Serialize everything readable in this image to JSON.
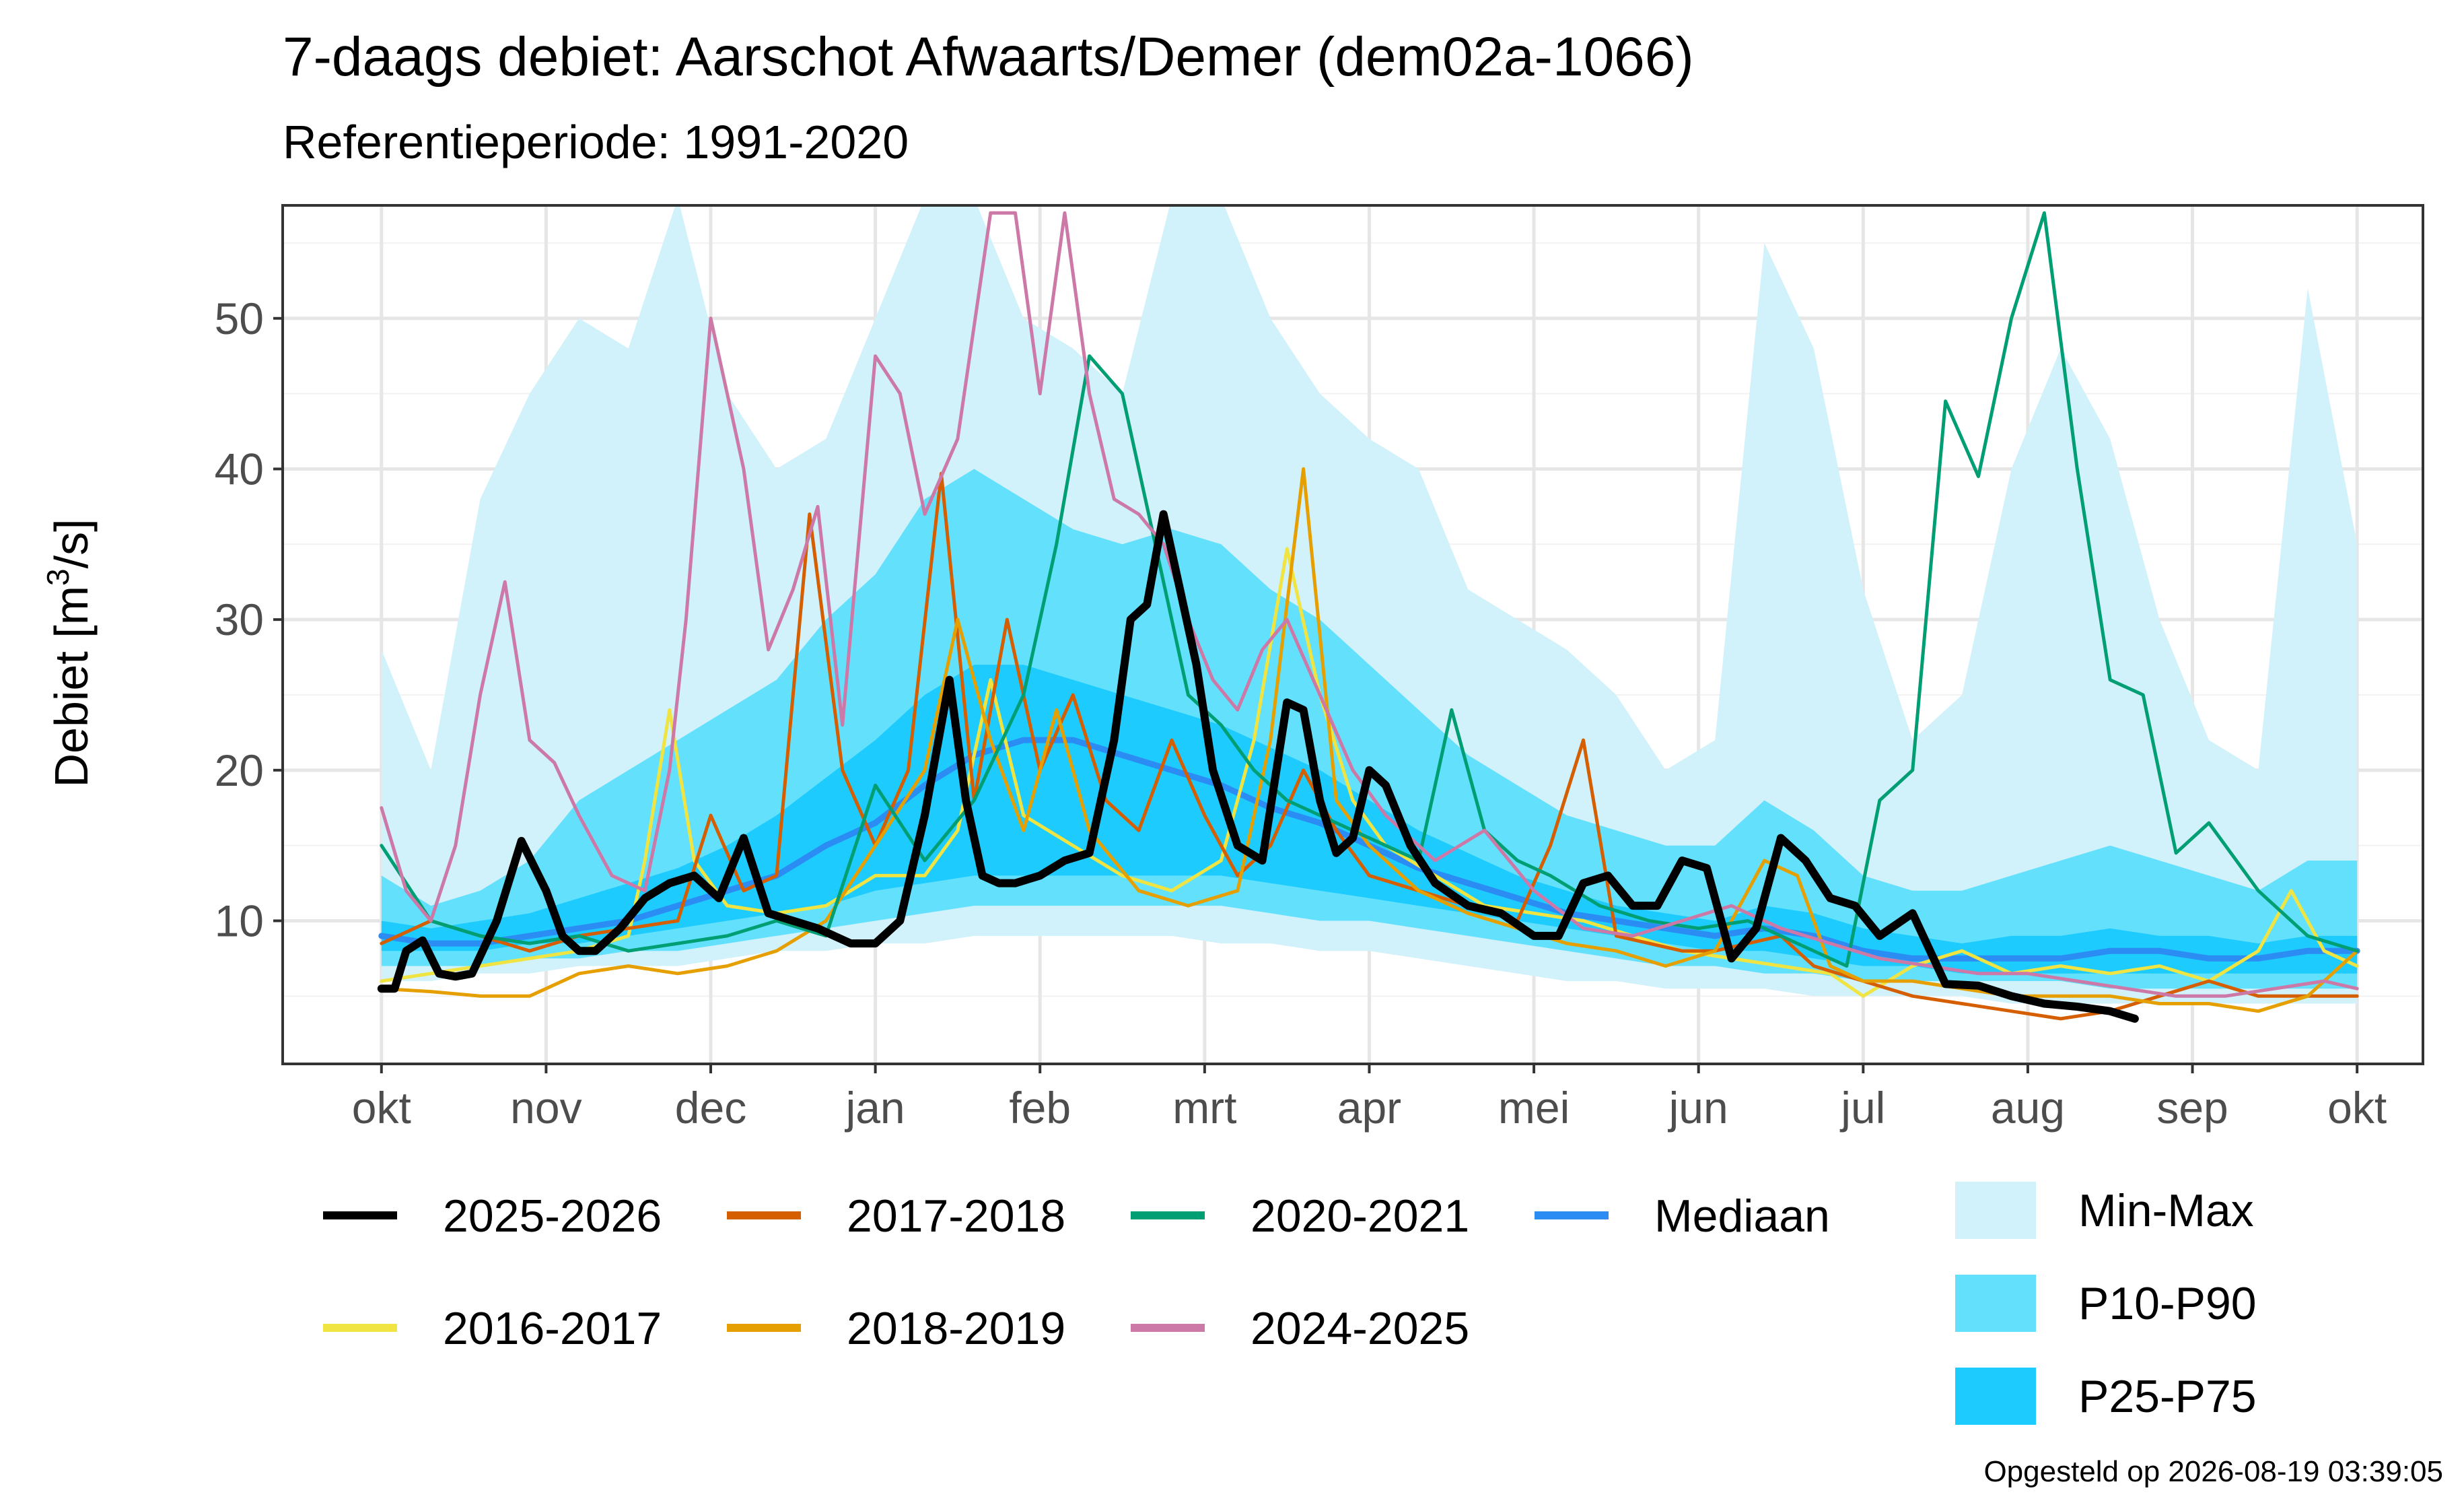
{
  "chart_data": {
    "type": "line",
    "title": "7-daags debiet: Aarschot Afwaarts/Demer (dem02a-1066)",
    "subtitle": "Referentieperiode: 1991-2020",
    "ylabel_main": "Debiet [m",
    "ylabel_sup": "3",
    "ylabel_tail": "/s]",
    "caption": "Opgesteld op 2026-08-19 03:39:05",
    "ylim": [
      0.5,
      57.5
    ],
    "xlim": [
      -0.6,
      12.4
    ],
    "y_ticks": [
      10,
      20,
      30,
      40,
      50
    ],
    "x_ticks": [
      {
        "label": "okt",
        "m": 0
      },
      {
        "label": "nov",
        "m": 1
      },
      {
        "label": "dec",
        "m": 2
      },
      {
        "label": "jan",
        "m": 3
      },
      {
        "label": "feb",
        "m": 4
      },
      {
        "label": "mrt",
        "m": 5
      },
      {
        "label": "apr",
        "m": 6
      },
      {
        "label": "mei",
        "m": 7
      },
      {
        "label": "jun",
        "m": 8
      },
      {
        "label": "jul",
        "m": 9
      },
      {
        "label": "aug",
        "m": 10
      },
      {
        "label": "sep",
        "m": 11
      },
      {
        "label": "okt",
        "m": 12
      }
    ],
    "grid": true,
    "legend_position": "bottom",
    "bands": [
      {
        "name": "Min-Max",
        "color": "#d1f1fb",
        "x": [
          0,
          0.3,
          0.6,
          0.9,
          1.2,
          1.5,
          1.8,
          2.1,
          2.4,
          2.7,
          3.0,
          3.3,
          3.6,
          3.9,
          4.2,
          4.5,
          4.8,
          5.1,
          5.4,
          5.7,
          6.0,
          6.3,
          6.6,
          6.9,
          7.2,
          7.5,
          7.8,
          8.1,
          8.4,
          8.7,
          9.0,
          9.3,
          9.6,
          9.9,
          10.2,
          10.5,
          10.8,
          11.1,
          11.4,
          11.7,
          12.0
        ],
        "upper": [
          28,
          20,
          38,
          45,
          50,
          48,
          58,
          45,
          40,
          42,
          50,
          58,
          58,
          50,
          48,
          45,
          58,
          58,
          50,
          45,
          42,
          40,
          32,
          30,
          28,
          25,
          20,
          22,
          55,
          48,
          32,
          22,
          25,
          40,
          48,
          42,
          30,
          22,
          20,
          52,
          35
        ],
        "lower": [
          6,
          6,
          6.5,
          6.5,
          7,
          7,
          7,
          7.5,
          8,
          8,
          8.5,
          8.5,
          9,
          9,
          9,
          9,
          9,
          8.5,
          8.5,
          8,
          8,
          7.5,
          7,
          6.5,
          6,
          6,
          5.5,
          5.5,
          5.5,
          5,
          5,
          5,
          5,
          4.5,
          4.5,
          4.5,
          4.5,
          4.5,
          4.5,
          4.5,
          4.5
        ]
      },
      {
        "name": "P10-P90",
        "color": "#63e1fc",
        "x": [
          0,
          0.3,
          0.6,
          0.9,
          1.2,
          1.5,
          1.8,
          2.1,
          2.4,
          2.7,
          3.0,
          3.3,
          3.6,
          3.9,
          4.2,
          4.5,
          4.8,
          5.1,
          5.4,
          5.7,
          6.0,
          6.3,
          6.6,
          6.9,
          7.2,
          7.5,
          7.8,
          8.1,
          8.4,
          8.7,
          9.0,
          9.3,
          9.6,
          9.9,
          10.2,
          10.5,
          10.8,
          11.1,
          11.4,
          11.7,
          12.0
        ],
        "upper": [
          13,
          11,
          12,
          14,
          18,
          20,
          22,
          24,
          26,
          30,
          33,
          38,
          40,
          38,
          36,
          35,
          36,
          35,
          32,
          30,
          27,
          24,
          21,
          19,
          17,
          16,
          15,
          15,
          18,
          16,
          13,
          12,
          12,
          13,
          14,
          15,
          14,
          13,
          12,
          14,
          14
        ],
        "lower": [
          7,
          7,
          7,
          7.5,
          7.5,
          8,
          8,
          8.5,
          9,
          9.5,
          10,
          10.5,
          11,
          11,
          11,
          11,
          11,
          11,
          10.5,
          10,
          10,
          9.5,
          9,
          8.5,
          8,
          7.5,
          7,
          7,
          6.5,
          6.5,
          6,
          6,
          6,
          6,
          6,
          5.5,
          5.5,
          5.5,
          5.5,
          5.5,
          5.5
        ]
      },
      {
        "name": "P25-P75",
        "color": "#1ecbfe",
        "x": [
          0,
          0.3,
          0.6,
          0.9,
          1.2,
          1.5,
          1.8,
          2.1,
          2.4,
          2.7,
          3.0,
          3.3,
          3.6,
          3.9,
          4.2,
          4.5,
          4.8,
          5.1,
          5.4,
          5.7,
          6.0,
          6.3,
          6.6,
          6.9,
          7.2,
          7.5,
          7.8,
          8.1,
          8.4,
          8.7,
          9.0,
          9.3,
          9.6,
          9.9,
          10.2,
          10.5,
          10.8,
          11.1,
          11.4,
          11.7,
          12.0
        ],
        "upper": [
          10,
          9.5,
          10,
          10.5,
          11.5,
          12.5,
          13.5,
          15,
          17,
          19.5,
          22,
          25,
          27,
          27,
          26,
          25,
          24,
          23,
          21.5,
          20,
          18,
          16,
          14.5,
          13,
          12,
          11,
          10.5,
          10,
          11,
          10.5,
          9.5,
          9,
          8.5,
          9,
          9,
          9.5,
          9,
          9,
          8.5,
          9,
          9
        ],
        "lower": [
          8,
          8,
          8,
          8.5,
          8.5,
          9,
          9.5,
          10,
          10.5,
          11,
          12,
          12.5,
          13,
          13,
          13,
          13,
          13,
          13,
          12.5,
          12,
          11.5,
          11,
          10.5,
          10,
          9.5,
          9,
          8.5,
          8,
          8,
          7.5,
          7,
          7,
          6.5,
          6.5,
          6.5,
          6.5,
          6.5,
          6.5,
          6.5,
          6.5,
          6.5
        ]
      }
    ],
    "series": [
      {
        "name": "Mediaan",
        "color": "#2b8cf4",
        "width": 9,
        "x": [
          0,
          0.3,
          0.6,
          0.9,
          1.2,
          1.5,
          1.8,
          2.1,
          2.4,
          2.7,
          3.0,
          3.3,
          3.6,
          3.9,
          4.2,
          4.5,
          4.8,
          5.1,
          5.4,
          5.7,
          6.0,
          6.3,
          6.6,
          6.9,
          7.2,
          7.5,
          7.8,
          8.1,
          8.4,
          8.7,
          9.0,
          9.3,
          9.6,
          9.9,
          10.2,
          10.5,
          10.8,
          11.1,
          11.4,
          11.7,
          12.0
        ],
        "y": [
          9,
          8.5,
          8.5,
          9,
          9.5,
          10,
          11,
          12,
          13,
          15,
          16.5,
          19,
          21,
          22,
          22,
          21,
          20,
          19,
          17.5,
          16.5,
          15,
          13.5,
          12.5,
          11.5,
          10.5,
          10,
          9.5,
          9,
          9.5,
          9,
          8,
          7.5,
          7.5,
          7.5,
          7.5,
          8,
          8,
          7.5,
          7.5,
          8,
          8
        ]
      },
      {
        "name": "2016-2017",
        "color": "#f0e442",
        "width": 5,
        "x": [
          0,
          0.3,
          0.6,
          0.9,
          1.2,
          1.5,
          1.6,
          1.75,
          1.9,
          2.1,
          2.4,
          2.7,
          3.0,
          3.3,
          3.5,
          3.7,
          3.9,
          4.2,
          4.5,
          4.8,
          5.1,
          5.3,
          5.5,
          5.7,
          5.9,
          6.1,
          6.4,
          6.7,
          7.0,
          7.3,
          7.6,
          7.9,
          8.2,
          8.5,
          8.8,
          9.0,
          9.3,
          9.6,
          9.9,
          10.2,
          10.5,
          10.8,
          11.1,
          11.4,
          11.6,
          11.8,
          12.0
        ],
        "y": [
          6,
          6.5,
          7,
          7.5,
          8,
          9,
          14,
          24,
          14,
          11,
          10.5,
          11,
          13,
          13,
          16,
          26,
          17,
          15,
          13,
          12,
          14,
          22,
          34.7,
          25,
          18,
          15,
          13,
          11,
          10.5,
          10,
          9,
          8,
          7.5,
          7,
          6.5,
          5,
          7,
          8,
          6.5,
          7,
          6.5,
          7,
          6,
          8,
          12,
          8,
          7
        ]
      },
      {
        "name": "2017-2018",
        "color": "#d55e00",
        "width": 5,
        "x": [
          0,
          0.3,
          0.6,
          0.9,
          1.2,
          1.5,
          1.8,
          2.0,
          2.2,
          2.4,
          2.6,
          2.8,
          3.0,
          3.2,
          3.4,
          3.6,
          3.8,
          4.0,
          4.2,
          4.4,
          4.6,
          4.8,
          5.0,
          5.2,
          5.4,
          5.6,
          5.8,
          6.0,
          6.3,
          6.6,
          6.9,
          7.1,
          7.3,
          7.5,
          7.7,
          7.9,
          8.1,
          8.3,
          8.5,
          8.7,
          9.0,
          9.3,
          9.6,
          9.9,
          10.2,
          10.5,
          10.8,
          11.1,
          11.4,
          11.7,
          12.0
        ],
        "y": [
          8.5,
          10,
          9,
          8,
          9,
          9.5,
          10,
          17,
          12,
          13,
          37,
          20,
          15,
          20,
          39.7,
          18,
          30,
          20,
          25,
          18,
          16,
          22,
          17,
          13,
          15,
          20,
          16,
          13,
          12,
          11,
          10,
          15,
          22,
          9,
          8.5,
          8,
          8,
          8.5,
          9,
          7,
          6,
          5,
          4.5,
          4,
          3.5,
          4,
          5,
          6,
          5,
          5,
          5
        ]
      },
      {
        "name": "2018-2019",
        "color": "#e69f00",
        "width": 5,
        "x": [
          0,
          0.3,
          0.6,
          0.9,
          1.2,
          1.5,
          1.8,
          2.1,
          2.4,
          2.7,
          3.0,
          3.3,
          3.5,
          3.7,
          3.9,
          4.1,
          4.3,
          4.6,
          4.9,
          5.2,
          5.4,
          5.6,
          5.8,
          6.0,
          6.3,
          6.6,
          6.9,
          7.2,
          7.5,
          7.8,
          8.1,
          8.4,
          8.6,
          8.8,
          9.0,
          9.3,
          9.6,
          9.9,
          10.2,
          10.5,
          10.8,
          11.1,
          11.4,
          11.7,
          12.0
        ],
        "y": [
          5.5,
          5.3,
          5,
          5,
          6.5,
          7,
          6.5,
          7,
          8,
          10,
          15,
          20,
          30,
          22,
          16,
          24,
          16,
          12,
          11,
          12,
          22,
          40,
          18,
          15,
          12,
          10.5,
          9.5,
          8.5,
          8,
          7,
          8,
          14,
          13,
          7,
          6,
          6,
          5.5,
          5,
          5,
          5,
          4.5,
          4.5,
          4,
          5,
          8
        ]
      },
      {
        "name": "2020-2021",
        "color": "#009e73",
        "width": 5,
        "x": [
          0,
          0.3,
          0.6,
          0.9,
          1.2,
          1.5,
          1.8,
          2.1,
          2.4,
          2.7,
          3.0,
          3.3,
          3.6,
          3.9,
          4.1,
          4.3,
          4.5,
          4.7,
          4.9,
          5.1,
          5.3,
          5.5,
          5.7,
          5.9,
          6.1,
          6.3,
          6.5,
          6.7,
          6.9,
          7.1,
          7.4,
          7.7,
          8.0,
          8.3,
          8.6,
          8.9,
          9.1,
          9.3,
          9.5,
          9.7,
          9.9,
          10.1,
          10.3,
          10.5,
          10.7,
          10.9,
          11.1,
          11.4,
          11.7,
          12.0
        ],
        "y": [
          15,
          10,
          9,
          8.5,
          9,
          8,
          8.5,
          9,
          10,
          9,
          19,
          14,
          18,
          25,
          35,
          47.5,
          45,
          35,
          25,
          23,
          20,
          18,
          17,
          16,
          15,
          14,
          24,
          16,
          14,
          13,
          11,
          10,
          9.5,
          10,
          8.5,
          7,
          18,
          20,
          44.5,
          39.5,
          50,
          57,
          40,
          26,
          25,
          14.5,
          16.5,
          12,
          9,
          8
        ]
      },
      {
        "name": "2024-2025",
        "color": "#cc79a7",
        "width": 5,
        "x": [
          0,
          0.15,
          0.3,
          0.45,
          0.6,
          0.75,
          0.9,
          1.05,
          1.2,
          1.4,
          1.6,
          1.75,
          1.85,
          2.0,
          2.2,
          2.35,
          2.5,
          2.65,
          2.8,
          3.0,
          3.15,
          3.3,
          3.5,
          3.7,
          3.85,
          4.0,
          4.15,
          4.3,
          4.45,
          4.6,
          4.75,
          4.9,
          5.05,
          5.2,
          5.35,
          5.5,
          5.7,
          5.9,
          6.1,
          6.4,
          6.7,
          7.0,
          7.3,
          7.6,
          7.9,
          8.2,
          8.5,
          8.8,
          9.1,
          9.4,
          9.7,
          10.0,
          10.3,
          10.6,
          10.9,
          11.2,
          11.5,
          11.8,
          12.0
        ],
        "y": [
          17.5,
          12,
          10,
          15,
          25,
          32.5,
          22,
          20.5,
          17,
          13,
          12,
          20,
          30,
          50,
          40,
          28,
          32,
          37.5,
          23,
          47.5,
          45,
          37,
          42,
          57,
          57,
          45,
          57,
          45,
          38,
          37,
          35,
          30,
          26,
          24,
          28,
          30,
          25,
          20,
          17,
          14,
          16,
          12,
          9.5,
          9,
          10,
          11,
          9.5,
          8.5,
          7.5,
          7,
          6.5,
          6.5,
          6,
          5.5,
          5,
          5,
          5.5,
          6,
          5.5
        ]
      },
      {
        "name": "2025-2026",
        "color": "#000000",
        "width": 12,
        "x": [
          0,
          0.08,
          0.15,
          0.25,
          0.35,
          0.45,
          0.55,
          0.7,
          0.85,
          1.0,
          1.1,
          1.2,
          1.3,
          1.45,
          1.6,
          1.75,
          1.9,
          2.05,
          2.2,
          2.35,
          2.5,
          2.65,
          2.75,
          2.85,
          3.0,
          3.15,
          3.3,
          3.45,
          3.55,
          3.65,
          3.75,
          3.85,
          4.0,
          4.15,
          4.3,
          4.45,
          4.55,
          4.65,
          4.75,
          4.85,
          4.95,
          5.05,
          5.2,
          5.35,
          5.5,
          5.6,
          5.7,
          5.8,
          5.9,
          6.0,
          6.1,
          6.25,
          6.4,
          6.6,
          6.8,
          7.0,
          7.15,
          7.3,
          7.45,
          7.6,
          7.75,
          7.9,
          8.05,
          8.2,
          8.35,
          8.5,
          8.65,
          8.8,
          8.95,
          9.1,
          9.3,
          9.5,
          9.7,
          9.9,
          10.1,
          10.3,
          10.5,
          10.65
        ],
        "y": [
          5.5,
          5.5,
          8,
          8.7,
          6.5,
          6.3,
          6.5,
          10,
          15.3,
          12,
          9,
          8,
          8,
          9.5,
          11.5,
          12.5,
          13,
          11.5,
          15.5,
          10.5,
          10,
          9.5,
          9,
          8.5,
          8.5,
          10,
          17,
          26,
          18,
          13,
          12.5,
          12.5,
          13,
          14,
          14.5,
          22,
          30,
          31,
          37,
          32,
          27,
          20,
          15,
          14,
          24.5,
          24,
          18,
          14.5,
          15.5,
          20,
          19,
          15,
          12.5,
          11,
          10.5,
          9,
          9,
          12.5,
          13,
          11,
          11,
          14,
          13.5,
          7.5,
          9.5,
          15.5,
          14,
          11.5,
          11,
          9,
          10.5,
          5.8,
          5.7,
          5,
          4.5,
          4.3,
          4,
          3.5
        ]
      }
    ],
    "legend_lines": [
      {
        "label": "2025-2026",
        "color": "#000000"
      },
      {
        "label": "2017-2018",
        "color": "#d55e00"
      },
      {
        "label": "2020-2021",
        "color": "#009e73"
      },
      {
        "label": "Mediaan",
        "color": "#2b8cf4"
      },
      {
        "label": "2016-2017",
        "color": "#f0e442"
      },
      {
        "label": "2018-2019",
        "color": "#e69f00"
      },
      {
        "label": "2024-2025",
        "color": "#cc79a7"
      }
    ],
    "legend_bands": [
      {
        "label": "Min-Max",
        "color": "#d1f1fb"
      },
      {
        "label": "P10-P90",
        "color": "#63e1fc"
      },
      {
        "label": "P25-P75",
        "color": "#1ecbfe"
      }
    ]
  }
}
